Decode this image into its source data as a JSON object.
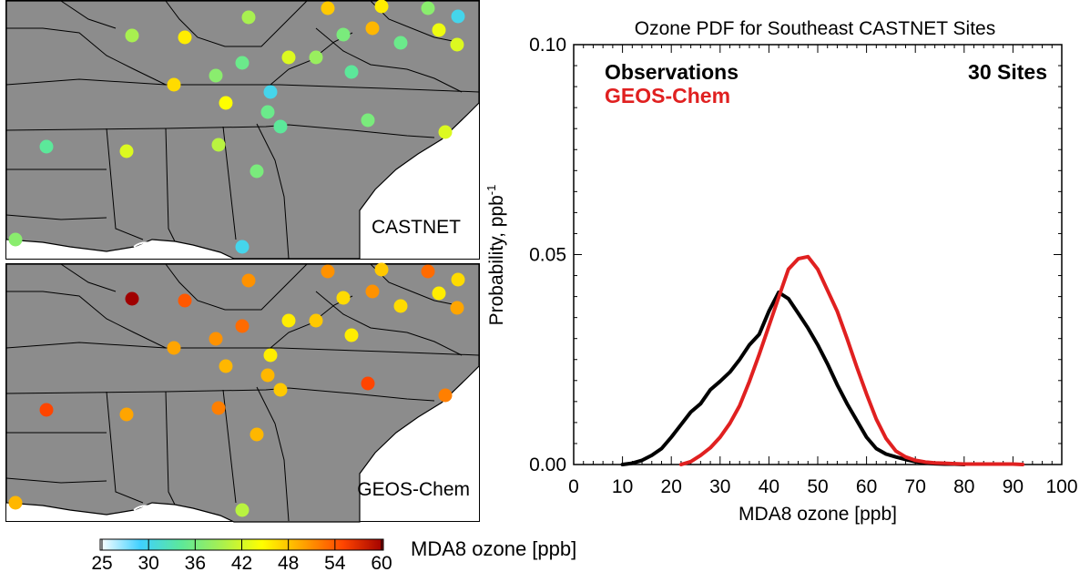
{
  "maps": {
    "top_label": "CASTNET",
    "bottom_label": "GEOS-Chem",
    "land_color": "#8c8c8c",
    "ocean_color": "#ffffff"
  },
  "colorbar": {
    "title": "MDA8 ozone [ppb]",
    "ticks": [
      "25",
      "30",
      "36",
      "42",
      "48",
      "54",
      "60"
    ],
    "min": 25,
    "max": 60,
    "colors": [
      "#ffffff",
      "#3fd0ff",
      "#5ce89a",
      "#a8f050",
      "#ffff00",
      "#ffa500",
      "#ff4500",
      "#a00000"
    ]
  },
  "chart_data": {
    "type": "line",
    "title": "Ozone PDF for Southeast CASTNET Sites",
    "xlabel": "MDA8 ozone [ppb]",
    "ylabel": "Probability, ppb",
    "ylabel_superscript": "-1",
    "annotation": "30 Sites",
    "xlim": [
      0,
      100
    ],
    "ylim": [
      0,
      0.1
    ],
    "x_ticks": [
      "0",
      "10",
      "20",
      "30",
      "40",
      "50",
      "60",
      "70",
      "80",
      "90",
      "100"
    ],
    "y_ticks": [
      "0.00",
      "0.05",
      "0.10"
    ],
    "series": [
      {
        "name": "Observations",
        "color": "#000000",
        "x": [
          10,
          12,
          14,
          16,
          18,
          20,
          22,
          24,
          26,
          28,
          30,
          32,
          34,
          36,
          38,
          40,
          42,
          44,
          46,
          48,
          50,
          52,
          54,
          56,
          58,
          60,
          62,
          64,
          66,
          68,
          70,
          72,
          74,
          76,
          78,
          80
        ],
        "values": [
          0.0,
          0.0003,
          0.001,
          0.0022,
          0.0038,
          0.0065,
          0.0095,
          0.0125,
          0.0145,
          0.0178,
          0.0198,
          0.022,
          0.025,
          0.0285,
          0.031,
          0.0365,
          0.041,
          0.0395,
          0.036,
          0.0325,
          0.0285,
          0.024,
          0.019,
          0.0145,
          0.0105,
          0.0065,
          0.0038,
          0.0025,
          0.0018,
          0.0012,
          0.0007,
          0.0004,
          0.0002,
          0.0001,
          0.0001,
          0.0
        ]
      },
      {
        "name": "GEOS-Chem",
        "color": "#e02020",
        "x": [
          22,
          24,
          26,
          28,
          30,
          32,
          34,
          36,
          38,
          40,
          42,
          44,
          46,
          48,
          50,
          52,
          54,
          56,
          58,
          60,
          62,
          64,
          66,
          68,
          70,
          72,
          74,
          76,
          78,
          80,
          82,
          84,
          86,
          88,
          90,
          92
        ],
        "values": [
          0.0,
          0.0007,
          0.0022,
          0.004,
          0.0065,
          0.0098,
          0.014,
          0.0198,
          0.0262,
          0.033,
          0.0398,
          0.0465,
          0.049,
          0.0495,
          0.0465,
          0.0415,
          0.0365,
          0.03,
          0.0232,
          0.0168,
          0.0108,
          0.0062,
          0.0032,
          0.0018,
          0.001,
          0.0006,
          0.0004,
          0.0003,
          0.0002,
          0.0001,
          0.0001,
          0.0001,
          0.0001,
          0.0001,
          0.0001,
          0.0
        ]
      }
    ]
  },
  "sites": [
    {
      "obs": 40,
      "model": 60
    },
    {
      "obs": 46,
      "model": 54
    },
    {
      "obs": 40,
      "model": 51
    },
    {
      "obs": 48,
      "model": 51
    },
    {
      "obs": 46,
      "model": 48
    },
    {
      "obs": 38,
      "model": 53
    },
    {
      "obs": 31,
      "model": 47
    },
    {
      "obs": 37,
      "model": 47
    },
    {
      "obs": 49,
      "model": 51
    },
    {
      "obs": 36,
      "model": 47
    },
    {
      "obs": 44,
      "model": 46
    },
    {
      "obs": 43,
      "model": 50
    },
    {
      "obs": 36,
      "model": 53
    },
    {
      "obs": 38,
      "model": 51
    },
    {
      "obs": 43,
      "model": 46
    },
    {
      "obs": 39,
      "model": 48
    },
    {
      "obs": 35,
      "model": 46
    },
    {
      "obs": 47,
      "model": 50
    },
    {
      "obs": 31,
      "model": 46
    },
    {
      "obs": 45,
      "model": 49
    },
    {
      "obs": 36,
      "model": 49
    },
    {
      "obs": 35,
      "model": 48
    },
    {
      "obs": 37,
      "model": 55
    },
    {
      "obs": 43,
      "model": 52
    },
    {
      "obs": 35,
      "model": 55
    },
    {
      "obs": 43,
      "model": 50
    },
    {
      "obs": 41,
      "model": 52
    },
    {
      "obs": 37,
      "model": 49
    },
    {
      "obs": 31,
      "model": 41
    },
    {
      "obs": 38,
      "model": 49
    }
  ]
}
